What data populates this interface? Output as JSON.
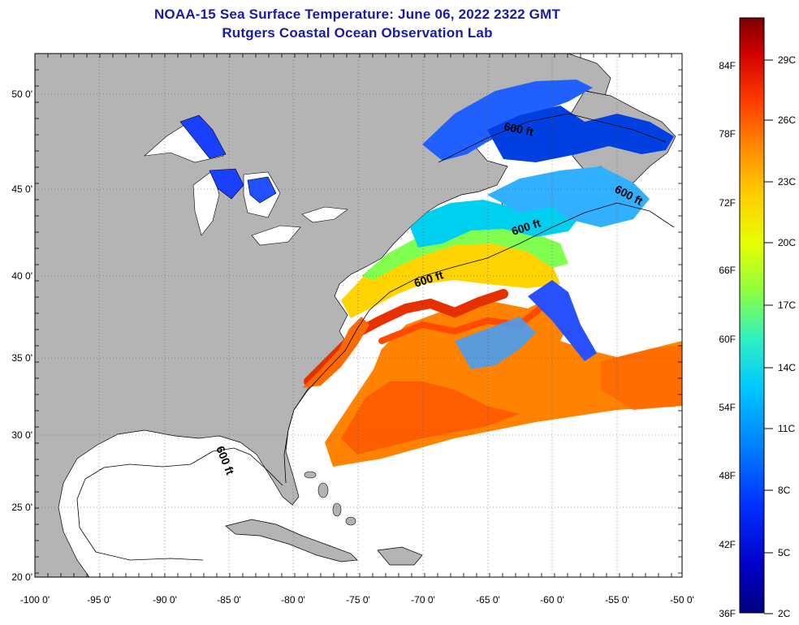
{
  "title": {
    "line1": "NOAA-15 Sea Surface Temperature:  June 06, 2022 2322 GMT",
    "line2": "Rutgers Coastal Ocean Observation Lab"
  },
  "map": {
    "lon_labels": [
      "-100 0'",
      "-95 0'",
      "-90 0'",
      "-85 0'",
      "-80 0'",
      "-75 0'",
      "-70 0'",
      "-65 0'",
      "-60 0'",
      "-55 0'",
      "-50 0'"
    ],
    "lat_labels": [
      "50 0'",
      "45 0'",
      "40 0'",
      "35 0'",
      "30 0'",
      "25 0'",
      "20 0'"
    ],
    "contour_labels": [
      "600 ft",
      "600 ft",
      "600 ft",
      "600 ft",
      "600 ft"
    ],
    "colors": {
      "land": "#b4b4b4",
      "ocean_nodata": "#ffffff",
      "frame": "#000000"
    }
  },
  "colorbar": {
    "f_labels": [
      "84F",
      "78F",
      "72F",
      "66F",
      "60F",
      "54F",
      "48F",
      "42F",
      "36F"
    ],
    "c_labels": [
      "29C",
      "26C",
      "23C",
      "20C",
      "17C",
      "14C",
      "11C",
      "8C",
      "5C",
      "2C"
    ],
    "colors": [
      "#7a0000",
      "#d20000",
      "#ff3c00",
      "#ff8c00",
      "#ffd000",
      "#e6ff00",
      "#8cff40",
      "#30f0c0",
      "#00c8ff",
      "#0080ff",
      "#0030ff",
      "#0000c8",
      "#000080"
    ]
  }
}
